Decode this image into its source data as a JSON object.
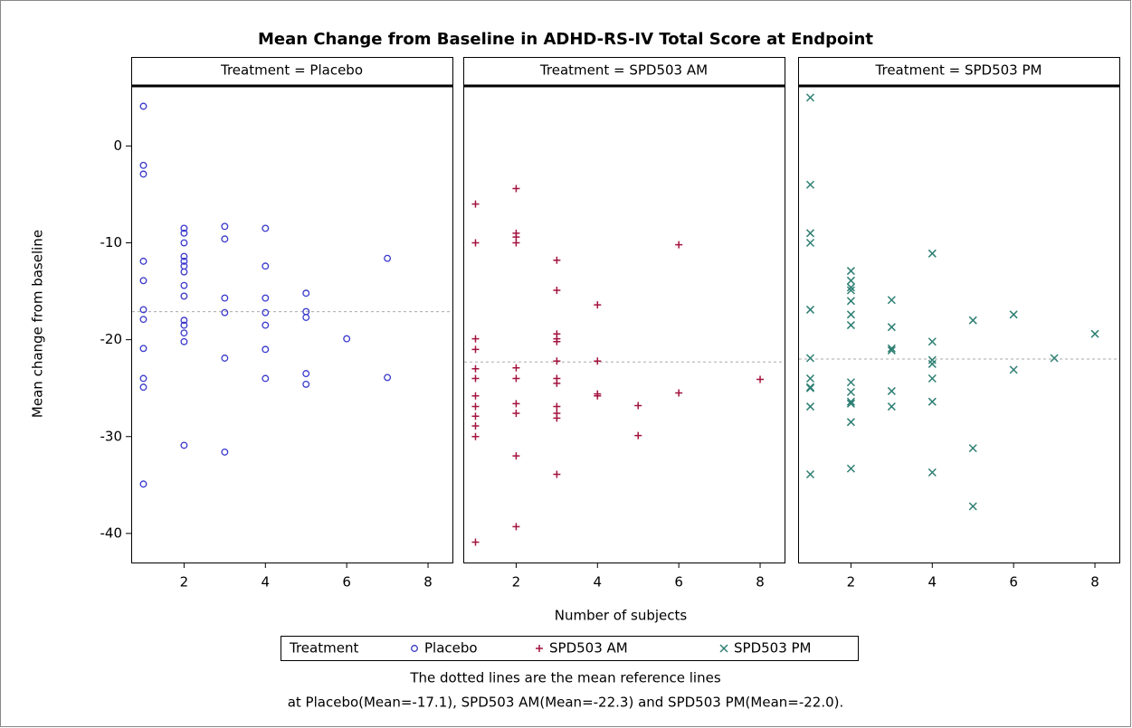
{
  "chart_data": {
    "type": "scatter",
    "title": "Mean Change from Baseline in ADHD-RS-IV Total Score at Endpoint",
    "xlabel": "Number of subjects",
    "ylabel": "Mean change from baseline",
    "legend_title": "Treatment",
    "footnote": [
      "The dotted lines are the mean reference lines",
      "at Placebo(Mean=-17.1), SPD503 AM(Mean=-22.3) and SPD503 PM(Mean=-22.0)."
    ],
    "xlim": [
      0.7,
      8.6
    ],
    "xticks": [
      2,
      4,
      6,
      8
    ],
    "ylim": [
      -43,
      6.2
    ],
    "yticks": [
      -40,
      -30,
      -20,
      -10,
      0
    ],
    "panels": [
      {
        "title": "Treatment = Placebo",
        "name": "Placebo",
        "color": "#3838cc",
        "marker": "circle",
        "mean": -17.1,
        "x": [
          1,
          1,
          1,
          1,
          1,
          1,
          1,
          1,
          1,
          1,
          1,
          2,
          2,
          2,
          2,
          2,
          2,
          2,
          2,
          2,
          2,
          2,
          2,
          2,
          2,
          3,
          3,
          3,
          3,
          3,
          3,
          4,
          4,
          4,
          4,
          4,
          4,
          4,
          5,
          5,
          5,
          5,
          5,
          6,
          7,
          7
        ],
        "values": [
          4.1,
          -2,
          -2.9,
          -11.9,
          -13.9,
          -16.9,
          -17.9,
          -20.9,
          -24,
          -24.9,
          -34.9,
          -8.5,
          -9,
          -10,
          -11.4,
          -11.9,
          -12.4,
          -13,
          -14.4,
          -15.5,
          -18,
          -18.5,
          -19.3,
          -20.2,
          -30.9,
          -8.3,
          -9.6,
          -15.7,
          -17.2,
          -21.9,
          -31.6,
          -8.5,
          -12.4,
          -15.7,
          -17.2,
          -18.5,
          -21,
          -24,
          -15.2,
          -17.1,
          -17.7,
          -23.5,
          -24.6,
          -19.9,
          -11.6,
          -23.9
        ]
      },
      {
        "title": "Treatment = SPD503 AM",
        "name": "SPD503 AM",
        "color": "#a3133f",
        "marker": "plus",
        "mean": -22.3,
        "x": [
          1,
          1,
          1,
          1,
          1,
          1,
          1,
          1,
          1,
          1,
          1,
          1,
          2,
          2,
          2,
          2,
          2,
          2,
          2,
          2,
          2,
          2,
          3,
          3,
          3,
          3,
          3,
          3,
          3,
          3,
          3,
          3,
          3,
          3,
          4,
          4,
          4,
          4,
          5,
          5,
          6,
          6,
          8
        ],
        "values": [
          -6,
          -10,
          -19.9,
          -21,
          -23,
          -24,
          -25.8,
          -26.9,
          -27.9,
          -28.9,
          -30,
          -40.9,
          -4.4,
          -9,
          -9.4,
          -10,
          -22.9,
          -24,
          -26.6,
          -27.6,
          -32,
          -39.3,
          -11.8,
          -14.9,
          -19.4,
          -19.9,
          -20.2,
          -22.2,
          -24,
          -24.5,
          -26.9,
          -27.6,
          -28.1,
          -33.9,
          -16.4,
          -22.2,
          -25.6,
          -25.8,
          -26.8,
          -29.9,
          -10.2,
          -25.5,
          -24.1
        ]
      },
      {
        "title": "Treatment = SPD503 PM",
        "name": "SPD503 PM",
        "color": "#2e7f73",
        "marker": "x",
        "mean": -22.0,
        "x": [
          1,
          1,
          1,
          1,
          1,
          1,
          1,
          1,
          1,
          1,
          1,
          2,
          2,
          2,
          2,
          2,
          2,
          2,
          2,
          2,
          2,
          2,
          2,
          2,
          3,
          3,
          3,
          3,
          3,
          3,
          4,
          4,
          4,
          4,
          4,
          4,
          4,
          5,
          5,
          5,
          6,
          6,
          7,
          8
        ],
        "values": [
          5,
          -4,
          -9,
          -10,
          -16.9,
          -21.9,
          -24,
          -24.9,
          -25,
          -26.9,
          -33.9,
          -12.9,
          -13.9,
          -14.6,
          -14.9,
          -16,
          -17.4,
          -18.5,
          -24.4,
          -25.4,
          -26.4,
          -26.6,
          -28.5,
          -33.3,
          -15.9,
          -18.7,
          -20.9,
          -21.1,
          -25.3,
          -26.9,
          -11.1,
          -20.2,
          -22.1,
          -22.5,
          -24,
          -26.4,
          -33.7,
          -18,
          -31.2,
          -37.2,
          -17.4,
          -23.1,
          -21.9,
          -19.4
        ]
      }
    ]
  }
}
